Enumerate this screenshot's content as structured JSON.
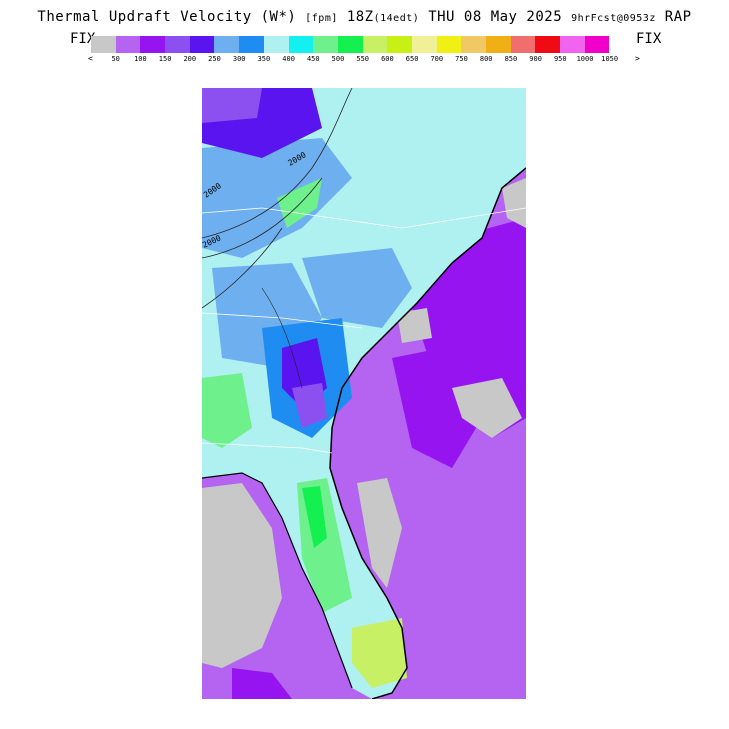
{
  "header": {
    "title_main": "Thermal Updraft Velocity (W*)",
    "title_units": "[fpm]",
    "title_time": "18Z",
    "title_local": "(14edt)",
    "title_date": "THU 08 May 2025",
    "title_fcst": "9hrFcst@0953z",
    "title_model": "RAP",
    "fix_left": "FIX",
    "fix_right": "FIX"
  },
  "legend": {
    "arrow_left": "<",
    "arrow_right": ">",
    "colors": [
      "#c8c8c8",
      "#b464f0",
      "#9614f0",
      "#8c50f0",
      "#5a14f0",
      "#6eaff0",
      "#1e8cf0",
      "#aff0f0",
      "#14f0f0",
      "#6ef08c",
      "#14f050",
      "#c8f064",
      "#c8f014",
      "#f0f096",
      "#f0f014",
      "#f0c864",
      "#f0af14",
      "#f06e6e",
      "#f00a14",
      "#f064f0",
      "#f000c8"
    ],
    "ticks": [
      "50",
      "100",
      "150",
      "200",
      "250",
      "300",
      "350",
      "400",
      "450",
      "500",
      "550",
      "600",
      "650",
      "700",
      "750",
      "800",
      "850",
      "900",
      "950",
      "1000",
      "1050"
    ]
  },
  "map": {
    "contour_labels": [
      "2000",
      "2000",
      "2000"
    ]
  }
}
